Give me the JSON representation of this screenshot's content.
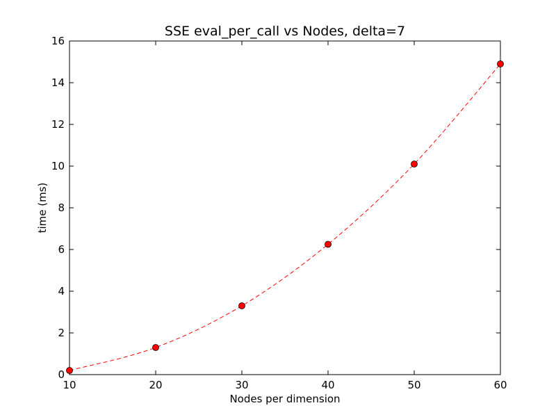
{
  "chart_data": {
    "type": "line",
    "title": "SSE eval_per_call vs Nodes, delta=7",
    "xlabel": "Nodes per dimension",
    "ylabel": "time (ms)",
    "xlim": [
      10,
      60
    ],
    "ylim": [
      0,
      16
    ],
    "xticks": [
      "10",
      "20",
      "30",
      "40",
      "50",
      "60"
    ],
    "yticks": [
      "0",
      "2",
      "4",
      "6",
      "8",
      "10",
      "12",
      "14",
      "16"
    ],
    "grid": false,
    "legend": "none",
    "series": [
      {
        "x": [
          10,
          20,
          30,
          40,
          50,
          60
        ],
        "values": [
          0.2,
          1.3,
          3.3,
          6.25,
          10.1,
          14.9
        ],
        "line_style": "dashed",
        "line_color": "#ff0000",
        "marker": "circle",
        "marker_color": "#ff0000",
        "marker_edge_color": "#000000"
      }
    ]
  }
}
